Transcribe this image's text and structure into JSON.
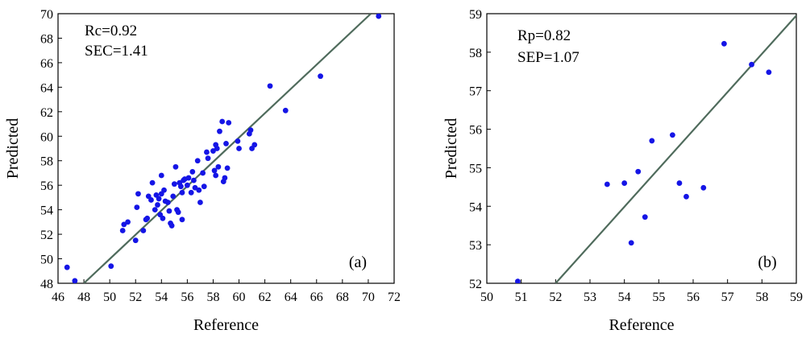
{
  "chart_data": [
    {
      "type": "scatter",
      "panel_label": "(a)",
      "xlabel": "Reference",
      "ylabel": "Predicted",
      "xlim": [
        46,
        72
      ],
      "ylim": [
        48,
        70
      ],
      "xticks": [
        46,
        48,
        50,
        52,
        54,
        56,
        58,
        60,
        62,
        64,
        66,
        68,
        70,
        72
      ],
      "yticks": [
        48,
        50,
        52,
        54,
        56,
        58,
        60,
        62,
        64,
        66,
        68,
        70
      ],
      "annotations": [
        "Rc=0.92",
        "SEC=1.41"
      ],
      "fit_line": [
        [
          48.0,
          48.0
        ],
        [
          70.2,
          70.0
        ]
      ],
      "point_color": "#1515e6",
      "line_color": "#4f6b5c",
      "points": [
        [
          46.7,
          49.3
        ],
        [
          47.3,
          48.2
        ],
        [
          50.1,
          49.4
        ],
        [
          51.0,
          52.3
        ],
        [
          51.1,
          52.8
        ],
        [
          51.4,
          53.0
        ],
        [
          52.0,
          51.5
        ],
        [
          52.1,
          54.2
        ],
        [
          52.2,
          55.3
        ],
        [
          52.6,
          52.3
        ],
        [
          52.8,
          53.2
        ],
        [
          52.9,
          53.3
        ],
        [
          53.0,
          55.1
        ],
        [
          53.2,
          54.8
        ],
        [
          53.3,
          56.2
        ],
        [
          53.5,
          54.0
        ],
        [
          53.6,
          55.2
        ],
        [
          53.7,
          54.4
        ],
        [
          53.8,
          54.9
        ],
        [
          53.9,
          53.6
        ],
        [
          54.0,
          56.8
        ],
        [
          54.0,
          55.3
        ],
        [
          54.1,
          53.3
        ],
        [
          54.2,
          55.6
        ],
        [
          54.3,
          54.7
        ],
        [
          54.5,
          54.6
        ],
        [
          54.6,
          53.9
        ],
        [
          54.7,
          52.9
        ],
        [
          54.8,
          52.7
        ],
        [
          54.9,
          55.1
        ],
        [
          55.0,
          56.1
        ],
        [
          55.1,
          57.5
        ],
        [
          55.2,
          54.0
        ],
        [
          55.3,
          53.8
        ],
        [
          55.4,
          56.2
        ],
        [
          55.5,
          55.9
        ],
        [
          55.6,
          55.4
        ],
        [
          55.6,
          53.2
        ],
        [
          55.7,
          56.4
        ],
        [
          55.8,
          56.5
        ],
        [
          56.0,
          56.0
        ],
        [
          56.1,
          56.6
        ],
        [
          56.3,
          55.4
        ],
        [
          56.4,
          57.1
        ],
        [
          56.5,
          56.4
        ],
        [
          56.6,
          55.8
        ],
        [
          56.8,
          58.0
        ],
        [
          56.9,
          55.6
        ],
        [
          57.0,
          54.6
        ],
        [
          57.2,
          57.0
        ],
        [
          57.3,
          55.9
        ],
        [
          57.5,
          58.7
        ],
        [
          57.6,
          58.2
        ],
        [
          58.0,
          58.8
        ],
        [
          58.1,
          57.2
        ],
        [
          58.2,
          59.3
        ],
        [
          58.2,
          56.8
        ],
        [
          58.3,
          59.0
        ],
        [
          58.4,
          57.5
        ],
        [
          58.5,
          60.4
        ],
        [
          58.7,
          61.2
        ],
        [
          58.8,
          56.3
        ],
        [
          58.9,
          56.6
        ],
        [
          59.0,
          59.4
        ],
        [
          59.1,
          57.4
        ],
        [
          59.2,
          61.1
        ],
        [
          59.9,
          59.6
        ],
        [
          60.0,
          59.0
        ],
        [
          60.8,
          60.2
        ],
        [
          60.9,
          60.5
        ],
        [
          61.0,
          59.0
        ],
        [
          61.2,
          59.3
        ],
        [
          62.4,
          64.1
        ],
        [
          63.6,
          62.1
        ],
        [
          66.3,
          64.9
        ],
        [
          70.8,
          69.8
        ]
      ]
    },
    {
      "type": "scatter",
      "panel_label": "(b)",
      "xlabel": "Reference",
      "ylabel": "Predicted",
      "xlim": [
        50,
        59
      ],
      "ylim": [
        52,
        59
      ],
      "xticks": [
        50,
        51,
        52,
        53,
        54,
        55,
        56,
        57,
        58,
        59
      ],
      "yticks": [
        52,
        53,
        54,
        55,
        56,
        57,
        58,
        59
      ],
      "annotations": [
        "Rp=0.82",
        "SEP=1.07"
      ],
      "fit_line": [
        [
          52.0,
          52.0
        ],
        [
          59.0,
          58.95
        ]
      ],
      "point_color": "#1515e6",
      "line_color": "#4f6b5c",
      "points": [
        [
          50.9,
          52.05
        ],
        [
          53.5,
          54.57
        ],
        [
          54.0,
          54.6
        ],
        [
          54.2,
          53.05
        ],
        [
          54.4,
          54.9
        ],
        [
          54.6,
          53.72
        ],
        [
          54.8,
          55.7
        ],
        [
          55.4,
          55.85
        ],
        [
          55.6,
          54.6
        ],
        [
          55.8,
          54.25
        ],
        [
          56.3,
          54.48
        ],
        [
          56.9,
          58.22
        ],
        [
          57.7,
          57.68
        ],
        [
          58.2,
          57.48
        ]
      ]
    }
  ]
}
